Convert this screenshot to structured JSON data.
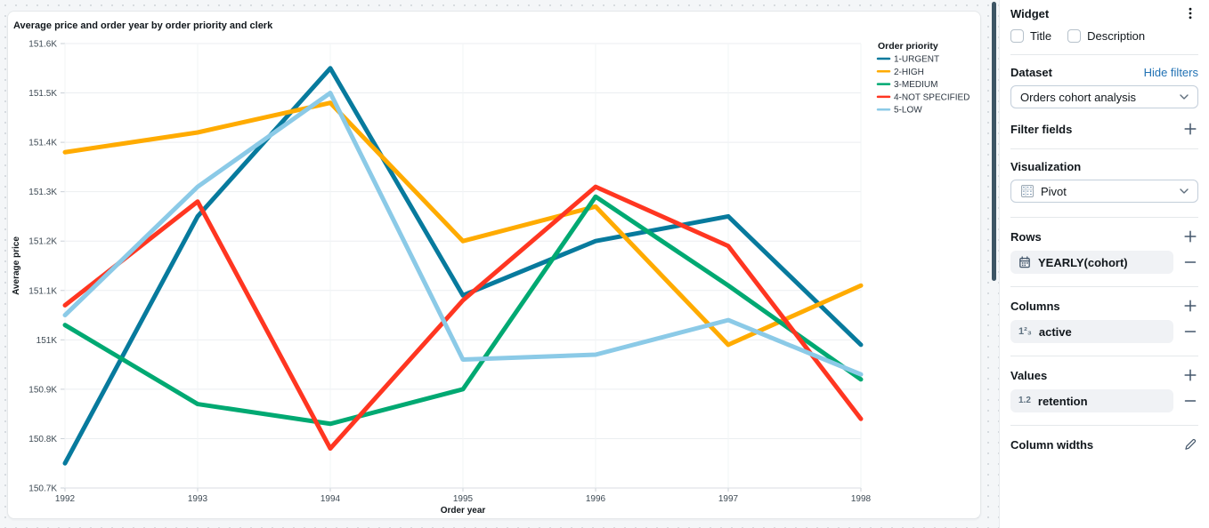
{
  "chart_data": {
    "type": "line",
    "title": "Average price and order year by order priority and clerk",
    "xlabel": "Order year",
    "ylabel": "Average price",
    "legend_title": "Order priority",
    "legend_position": "right",
    "grid": true,
    "unit": "K",
    "categories": [
      1992,
      1993,
      1994,
      1995,
      1996,
      1997,
      1998
    ],
    "ylim": [
      150.7,
      151.6
    ],
    "yticks": [
      {
        "value": 150.7,
        "label": "150.7K"
      },
      {
        "value": 150.8,
        "label": "150.8K"
      },
      {
        "value": 150.9,
        "label": "150.9K"
      },
      {
        "value": 151.0,
        "label": "151K"
      },
      {
        "value": 151.1,
        "label": "151.1K"
      },
      {
        "value": 151.2,
        "label": "151.2K"
      },
      {
        "value": 151.3,
        "label": "151.3K"
      },
      {
        "value": 151.4,
        "label": "151.4K"
      },
      {
        "value": 151.5,
        "label": "151.5K"
      },
      {
        "value": 151.6,
        "label": "151.6K"
      }
    ],
    "series": [
      {
        "name": "1-URGENT",
        "color": "#077A9D",
        "values": [
          150.75,
          151.25,
          151.55,
          151.09,
          151.2,
          151.25,
          150.99
        ]
      },
      {
        "name": "2-HIGH",
        "color": "#FFAB00",
        "values": [
          151.38,
          151.42,
          151.48,
          151.2,
          151.27,
          150.99,
          151.11
        ]
      },
      {
        "name": "3-MEDIUM",
        "color": "#00A972",
        "values": [
          151.03,
          150.87,
          150.83,
          150.9,
          151.29,
          151.11,
          150.92
        ]
      },
      {
        "name": "4-NOT SPECIFIED",
        "color": "#FF3621",
        "values": [
          151.07,
          151.28,
          150.78,
          151.08,
          151.31,
          151.19,
          150.84
        ]
      },
      {
        "name": "5-LOW",
        "color": "#8BCAE7",
        "values": [
          151.05,
          151.31,
          151.5,
          150.96,
          150.97,
          151.04,
          150.93
        ]
      }
    ]
  },
  "panel": {
    "title": "Widget",
    "checkboxes": [
      {
        "label": "Title",
        "checked": false
      },
      {
        "label": "Description",
        "checked": false
      }
    ],
    "dataset": {
      "label": "Dataset",
      "link_label": "Hide filters",
      "value": "Orders cohort analysis"
    },
    "filter_fields": {
      "label": "Filter fields"
    },
    "visualization": {
      "label": "Visualization",
      "value": "Pivot"
    },
    "rows": {
      "label": "Rows",
      "items": [
        {
          "icon": "calendar-icon",
          "label": "YEARLY(cohort)"
        }
      ]
    },
    "columns": {
      "label": "Columns",
      "items": [
        {
          "icon": "number-icon",
          "icon_text": "1²₃",
          "label": "active"
        }
      ]
    },
    "values": {
      "label": "Values",
      "items": [
        {
          "icon": "decimal-icon",
          "icon_text": "1.2",
          "label": "retention"
        }
      ]
    },
    "column_widths": {
      "label": "Column widths"
    }
  }
}
